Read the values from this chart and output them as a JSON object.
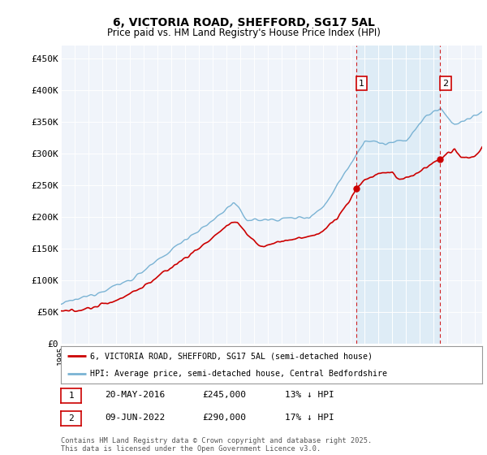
{
  "title": "6, VICTORIA ROAD, SHEFFORD, SG17 5AL",
  "subtitle": "Price paid vs. HM Land Registry's House Price Index (HPI)",
  "ylabel_ticks": [
    "£0",
    "£50K",
    "£100K",
    "£150K",
    "£200K",
    "£250K",
    "£300K",
    "£350K",
    "£400K",
    "£450K"
  ],
  "ytick_values": [
    0,
    50000,
    100000,
    150000,
    200000,
    250000,
    300000,
    350000,
    400000,
    450000
  ],
  "ylim": [
    0,
    470000
  ],
  "xlim_start": 1995,
  "xlim_end": 2025.5,
  "sale1": {
    "date_x": 2016.38,
    "price": 245000,
    "label": "1"
  },
  "sale2": {
    "date_x": 2022.44,
    "price": 290000,
    "label": "2"
  },
  "hpi_color": "#7ab3d4",
  "hpi_fill_color": "#daeaf5",
  "price_color": "#cc0000",
  "dashed_color": "#cc0000",
  "annotation_box_color": "#cc0000",
  "annotation_text_color": "#000000",
  "legend_label_price": "6, VICTORIA ROAD, SHEFFORD, SG17 5AL (semi-detached house)",
  "legend_label_hpi": "HPI: Average price, semi-detached house, Central Bedfordshire",
  "table_row1": [
    "1",
    "20-MAY-2016",
    "£245,000",
    "13% ↓ HPI"
  ],
  "table_row2": [
    "2",
    "09-JUN-2022",
    "£290,000",
    "17% ↓ HPI"
  ],
  "footer": "Contains HM Land Registry data © Crown copyright and database right 2025.\nThis data is licensed under the Open Government Licence v3.0.",
  "background_color": "#e8f0f8",
  "chart_bg": "#f0f4fa"
}
